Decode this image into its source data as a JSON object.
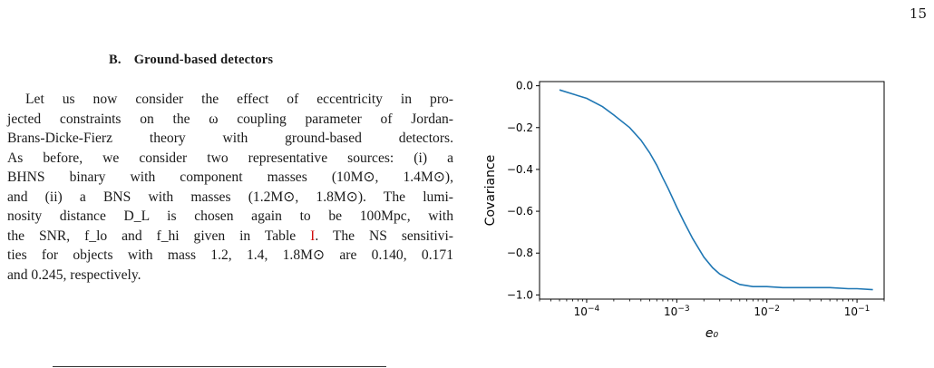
{
  "page": {
    "number": "15"
  },
  "section": {
    "number": "B.",
    "title": "Ground-based detectors"
  },
  "paragraph": {
    "lines": [
      "Let us now consider the effect of eccentricity in pro-",
      "jected constraints on the ω coupling parameter of Jordan-",
      "Brans-Dicke-Fierz theory with ground-based detectors.",
      "As before, we consider two representative sources: (i) a",
      "BHNS binary with component masses (10M⊙, 1.4M⊙),",
      "and (ii) a BNS with masses (1.2M⊙, 1.8M⊙). The lumi-",
      "nosity distance D_L is chosen again to be 100Mpc, with",
      "the SNR, f_lo and f_hi given in Table I. The NS sensitivi-",
      "ties for objects with mass 1.2, 1.4, 1.8M⊙ are 0.140, 0.171",
      "and 0.245, respectively."
    ],
    "table_ref": "I"
  },
  "chart_data": {
    "type": "line",
    "xscale": "log",
    "xlabel": "e₀",
    "ylabel": "Covariance",
    "xlim": [
      3e-05,
      0.2
    ],
    "ylim": [
      -1.02,
      0.02
    ],
    "xticks": [
      {
        "value": 0.0001,
        "base": "10",
        "exp": "−4"
      },
      {
        "value": 0.001,
        "base": "10",
        "exp": "−3"
      },
      {
        "value": 0.01,
        "base": "10",
        "exp": "−2"
      },
      {
        "value": 0.1,
        "base": "10",
        "exp": "−1"
      }
    ],
    "yticks": [
      {
        "value": 0.0,
        "label": "0.0"
      },
      {
        "value": -0.2,
        "label": "−0.2"
      },
      {
        "value": -0.4,
        "label": "−0.4"
      },
      {
        "value": -0.6,
        "label": "−0.6"
      },
      {
        "value": -0.8,
        "label": "−0.8"
      },
      {
        "value": -1.0,
        "label": "−1.0"
      }
    ],
    "series": [
      {
        "color": "#1f77b4",
        "x": [
          5e-05,
          0.0001,
          0.00015,
          0.0002,
          0.0003,
          0.0004,
          0.0005,
          0.0006,
          0.0007,
          0.0008,
          0.001,
          0.0012,
          0.0015,
          0.002,
          0.0025,
          0.003,
          0.004,
          0.005,
          0.007,
          0.01,
          0.015,
          0.02,
          0.03,
          0.05,
          0.08,
          0.1,
          0.15
        ],
        "y": [
          -0.02,
          -0.06,
          -0.1,
          -0.14,
          -0.2,
          -0.26,
          -0.32,
          -0.38,
          -0.44,
          -0.49,
          -0.58,
          -0.65,
          -0.73,
          -0.82,
          -0.87,
          -0.9,
          -0.93,
          -0.95,
          -0.96,
          -0.96,
          -0.965,
          -0.965,
          -0.965,
          -0.965,
          -0.97,
          -0.97,
          -0.975
        ]
      }
    ],
    "grid": false
  }
}
